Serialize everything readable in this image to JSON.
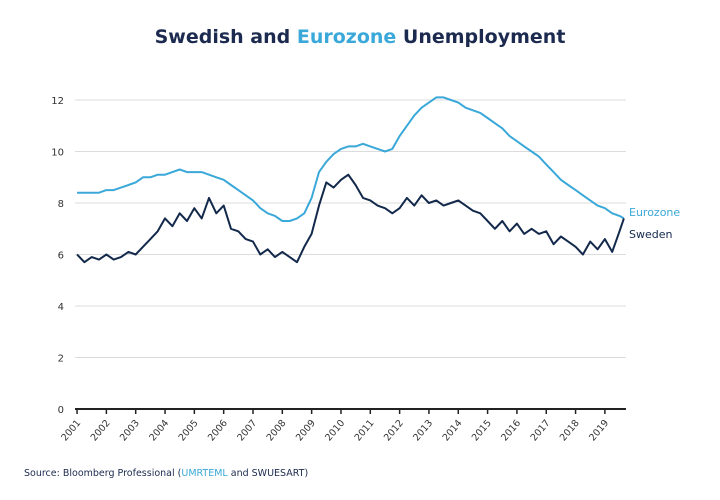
{
  "title": {
    "part1": "Swedish and ",
    "part2": "Eurozone",
    "part3": " Unemployment"
  },
  "source": {
    "prefix": "Source: Bloomberg Professional (",
    "code1": "UMRTEML",
    "middle": " and ",
    "code2": "SWUESART",
    "suffix": ")"
  },
  "chart_data": {
    "type": "line",
    "title": "Swedish and Eurozone Unemployment",
    "xlabel": "",
    "ylabel": "",
    "xlim": [
      2000.93,
      2019.72
    ],
    "ylim": [
      0,
      12
    ],
    "yticks": [
      0,
      2,
      4,
      6,
      8,
      10,
      12
    ],
    "xtick_labels": [
      "2001",
      "2002",
      "2003",
      "2004",
      "2005",
      "2006",
      "2007",
      "2008",
      "2009",
      "2010",
      "2011",
      "2012",
      "2013",
      "2014",
      "2015",
      "2016",
      "2017",
      "2018",
      "2019"
    ],
    "grid": "horizontal",
    "legend": "direct labels at right end",
    "x": [
      2001,
      2001.25,
      2001.5,
      2001.75,
      2002,
      2002.25,
      2002.5,
      2002.75,
      2003,
      2003.25,
      2003.5,
      2003.75,
      2004,
      2004.25,
      2004.5,
      2004.75,
      2005,
      2005.25,
      2005.5,
      2005.75,
      2006,
      2006.25,
      2006.5,
      2006.75,
      2007,
      2007.25,
      2007.5,
      2007.75,
      2008,
      2008.25,
      2008.5,
      2008.75,
      2009,
      2009.25,
      2009.5,
      2009.75,
      2010,
      2010.25,
      2010.5,
      2010.75,
      2011,
      2011.25,
      2011.5,
      2011.75,
      2012,
      2012.25,
      2012.5,
      2012.75,
      2013,
      2013.25,
      2013.5,
      2013.75,
      2014,
      2014.25,
      2014.5,
      2014.75,
      2015,
      2015.25,
      2015.5,
      2015.75,
      2016,
      2016.25,
      2016.5,
      2016.75,
      2017,
      2017.25,
      2017.5,
      2017.75,
      2018,
      2018.25,
      2018.5,
      2018.75,
      2019,
      2019.25,
      2019.5,
      2019.65
    ],
    "series": [
      {
        "name": "Eurozone",
        "color": "#3aa8d8",
        "values": [
          8.4,
          8.4,
          8.4,
          8.4,
          8.5,
          8.5,
          8.6,
          8.7,
          8.8,
          9.0,
          9.0,
          9.1,
          9.1,
          9.2,
          9.3,
          9.2,
          9.2,
          9.2,
          9.1,
          9.0,
          8.9,
          8.7,
          8.5,
          8.3,
          8.1,
          7.8,
          7.6,
          7.5,
          7.3,
          7.3,
          7.4,
          7.6,
          8.2,
          9.2,
          9.6,
          9.9,
          10.1,
          10.2,
          10.2,
          10.3,
          10.2,
          10.1,
          10.0,
          10.1,
          10.6,
          11.0,
          11.4,
          11.7,
          11.9,
          12.1,
          12.1,
          12.0,
          11.9,
          11.7,
          11.6,
          11.5,
          11.3,
          11.1,
          10.9,
          10.6,
          10.4,
          10.2,
          10.0,
          9.8,
          9.5,
          9.2,
          8.9,
          8.7,
          8.5,
          8.3,
          8.1,
          7.9,
          7.8,
          7.6,
          7.5,
          7.4
        ]
      },
      {
        "name": "Sweden",
        "color": "#13294b",
        "values": [
          6.0,
          5.7,
          5.9,
          5.8,
          6.0,
          5.8,
          5.9,
          6.1,
          6.0,
          6.3,
          6.6,
          6.9,
          7.4,
          7.1,
          7.6,
          7.3,
          7.8,
          7.4,
          8.2,
          7.6,
          7.9,
          7.0,
          6.9,
          6.6,
          6.5,
          6.0,
          6.2,
          5.9,
          6.1,
          5.9,
          5.7,
          6.3,
          6.8,
          7.9,
          8.8,
          8.6,
          8.9,
          9.1,
          8.7,
          8.2,
          8.1,
          7.9,
          7.8,
          7.6,
          7.8,
          8.2,
          7.9,
          8.3,
          8.0,
          8.1,
          7.9,
          8.0,
          8.1,
          7.9,
          7.7,
          7.6,
          7.3,
          7.0,
          7.3,
          6.9,
          7.2,
          6.8,
          7.0,
          6.8,
          6.9,
          6.4,
          6.7,
          6.5,
          6.3,
          6.0,
          6.5,
          6.2,
          6.6,
          6.1,
          6.9,
          7.4
        ]
      }
    ]
  }
}
